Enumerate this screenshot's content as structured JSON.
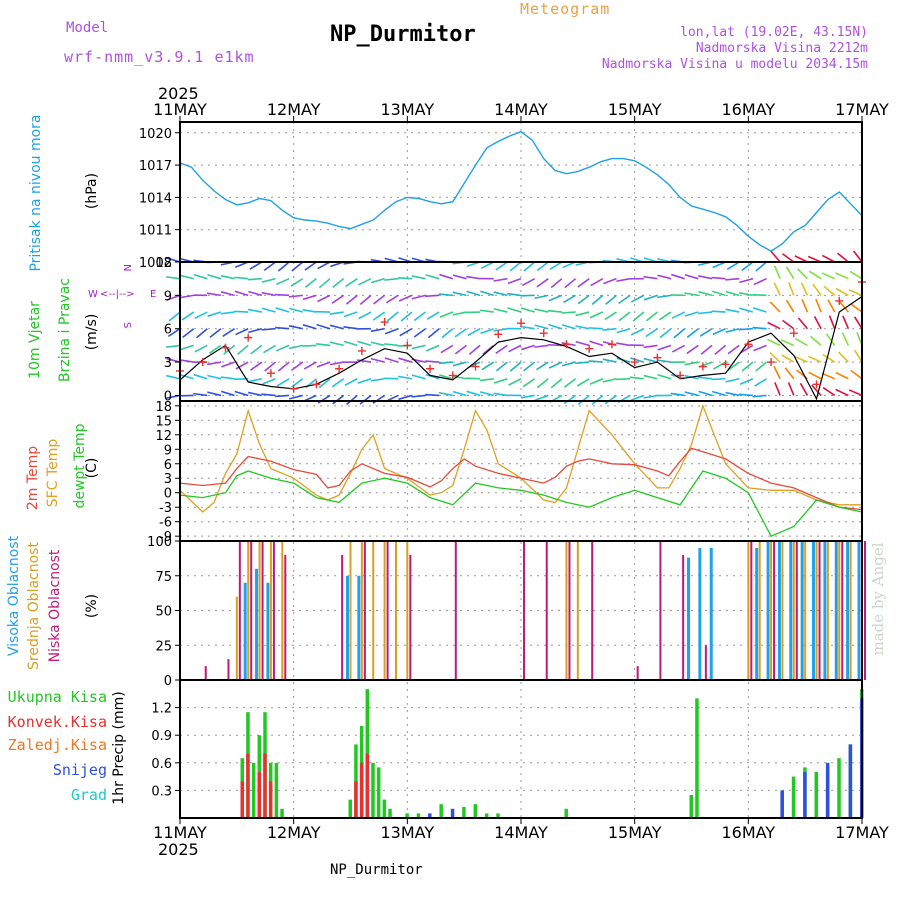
{
  "header": {
    "model_label": "Model",
    "model_name": "wrf-nmm_v3.9.1 e1km",
    "product": "Meteogram",
    "station": "NP_Durmitor",
    "lonlat": "lon,lat (19.02E, 43.15N)",
    "elevation": "Nadmorska Visina 2212m",
    "model_elevation": "Nadmorska Visina u modelu 2034.15m",
    "watermark": "made by Angel",
    "footer_station": "NP_Durmitor"
  },
  "colors": {
    "pressure": "#1ea0e6",
    "mslp_label": "#1ea0e6",
    "t2": "#e84a3c",
    "tsfc": "#e0a020",
    "td": "#22c822",
    "cloud_high": "#22a0e8",
    "cloud_mid": "#d8a020",
    "cloud_low": "#c01a78",
    "precip_total": "#22c822",
    "precip_conv": "#e83030",
    "precip_frz": "#f07820",
    "precip_snow": "#3050e0",
    "precip_graupel": "#20c8c8",
    "wind_speed": "#000000",
    "wind_gust": "#e83030",
    "compass": "#a020d0"
  },
  "time_axis": {
    "year": "2025",
    "labels": [
      "11MAY",
      "12MAY",
      "13MAY",
      "14MAY",
      "15MAY",
      "16MAY",
      "17MAY"
    ]
  },
  "panels": {
    "pressure": {
      "label1": "Pritisak na nivou mora",
      "unit": "(hPa)",
      "ticks": [
        "1008",
        "1011",
        "1014",
        "1017",
        "1020"
      ]
    },
    "wind": {
      "label1": "10m Vjetar",
      "label2": "Brzina i Pravac",
      "unit": "(m/s)",
      "ticks": [
        "0",
        "3",
        "6",
        "9",
        "12"
      ],
      "compass": {
        "n": "N",
        "s": "S",
        "w": "W",
        "e": "E",
        "arrows": "<--|-->"
      }
    },
    "temp": {
      "label1": "2m Temp",
      "label2": "SFC Temp",
      "label3": "dewpt Temp",
      "unit": "(C)",
      "ticks": [
        "-9",
        "-6",
        "-3",
        "0",
        "3",
        "6",
        "9",
        "12",
        "15",
        "18"
      ]
    },
    "cloud": {
      "label1": "Visoka Oblacnost",
      "label2": "Srednja Oblacnost",
      "label3": "Niska Oblacnost",
      "unit": "(%)",
      "ticks": [
        "0",
        "25",
        "50",
        "75",
        "100"
      ]
    },
    "precip": {
      "legend": [
        "Ukupna Kisa",
        "Konvek.Kisa",
        "Zaledj.Kisa",
        "Snijeg",
        "Grad"
      ],
      "unit": "1hr Precip (mm)",
      "ticks": [
        "0.3",
        "0.6",
        "0.9",
        "1.2"
      ]
    }
  },
  "chart_data": [
    {
      "type": "line",
      "title": "Pritisak na nivou mora",
      "ylabel": "(hPa)",
      "ylim": [
        1008,
        1021
      ],
      "x_unit": "days since 11MAY 00UTC",
      "xlim": [
        0,
        6
      ],
      "series": [
        {
          "name": "Pritisak na nivou mora",
          "x": [
            0,
            0.1,
            0.2,
            0.3,
            0.4,
            0.5,
            0.6,
            0.7,
            0.8,
            0.9,
            1.0,
            1.1,
            1.2,
            1.3,
            1.4,
            1.5,
            1.6,
            1.7,
            1.8,
            1.9,
            2.0,
            2.1,
            2.2,
            2.3,
            2.4,
            2.5,
            2.6,
            2.7,
            2.8,
            2.9,
            3.0,
            3.1,
            3.2,
            3.3,
            3.4,
            3.5,
            3.6,
            3.7,
            3.8,
            3.9,
            4.0,
            4.1,
            4.2,
            4.3,
            4.4,
            4.5,
            4.6,
            4.7,
            4.8,
            4.9,
            5.0,
            5.1,
            5.2,
            5.3,
            5.4,
            5.5,
            5.6,
            5.7,
            5.8,
            5.9,
            6.0
          ],
          "y": [
            1017.2,
            1016.8,
            1015.6,
            1014.6,
            1013.8,
            1013.3,
            1013.5,
            1013.9,
            1013.7,
            1012.8,
            1012.1,
            1011.9,
            1011.8,
            1011.6,
            1011.3,
            1011.1,
            1011.5,
            1011.9,
            1012.8,
            1013.6,
            1014.0,
            1013.9,
            1013.6,
            1013.4,
            1013.6,
            1015.3,
            1017.0,
            1018.6,
            1019.2,
            1019.7,
            1020.1,
            1019.3,
            1017.6,
            1016.5,
            1016.2,
            1016.4,
            1016.8,
            1017.3,
            1017.6,
            1017.6,
            1017.4,
            1016.8,
            1016.1,
            1015.2,
            1014.0,
            1013.2,
            1012.9,
            1012.6,
            1012.2,
            1011.4,
            1010.4,
            1009.6,
            1009.0,
            1009.7,
            1010.8,
            1011.4,
            1012.6,
            1013.8,
            1014.5,
            1013.4,
            1012.3
          ]
        }
      ]
    },
    {
      "type": "line",
      "title": "10m Vjetar Brzina i Pravac",
      "ylabel": "(m/s)",
      "ylim": [
        -0.5,
        12
      ],
      "xlim": [
        0,
        6
      ],
      "series": [
        {
          "name": "Brzina",
          "x": [
            0,
            0.2,
            0.4,
            0.6,
            0.8,
            1.0,
            1.2,
            1.4,
            1.6,
            1.8,
            2.0,
            2.2,
            2.4,
            2.6,
            2.8,
            3.0,
            3.2,
            3.4,
            3.6,
            3.8,
            4.0,
            4.2,
            4.4,
            4.6,
            4.8,
            5.0,
            5.2,
            5.4,
            5.6,
            5.8,
            6.0
          ],
          "y": [
            1.4,
            3.2,
            4.5,
            1.2,
            0.8,
            0.6,
            1.0,
            2.0,
            3.2,
            4.2,
            3.8,
            1.8,
            1.4,
            3.0,
            4.8,
            5.2,
            5.0,
            4.4,
            3.5,
            3.8,
            2.5,
            3.0,
            1.5,
            1.8,
            2.0,
            4.8,
            5.6,
            3.6,
            -0.3,
            7.5,
            8.9
          ]
        },
        {
          "name": "Udar",
          "x": [
            0,
            0.2,
            0.4,
            0.6,
            0.8,
            1.0,
            1.2,
            1.4,
            1.6,
            1.8,
            2.0,
            2.2,
            2.4,
            2.6,
            2.8,
            3.0,
            3.2,
            3.4,
            3.6,
            3.8,
            4.0,
            4.2,
            4.4,
            4.6,
            4.8,
            5.0,
            5.2,
            5.4,
            5.6,
            5.8,
            6.0
          ],
          "y": [
            2.2,
            3.0,
            4.3,
            5.2,
            2.0,
            0.6,
            1.0,
            2.4,
            4.0,
            6.6,
            4.5,
            2.4,
            1.8,
            2.6,
            5.5,
            6.5,
            5.6,
            4.6,
            4.2,
            4.6,
            3.0,
            3.4,
            1.8,
            2.6,
            2.8,
            4.6,
            3.0,
            5.6,
            1.0,
            8.5,
            10.2
          ]
        }
      ]
    },
    {
      "type": "line",
      "title": "Temperatura",
      "ylabel": "(C)",
      "ylim": [
        -10,
        19
      ],
      "xlim": [
        0,
        6
      ],
      "series": [
        {
          "name": "2m Temp",
          "x": [
            0,
            0.2,
            0.4,
            0.5,
            0.6,
            0.8,
            1.0,
            1.2,
            1.3,
            1.4,
            1.5,
            1.6,
            1.8,
            2.0,
            2.2,
            2.3,
            2.4,
            2.5,
            2.6,
            2.8,
            3.0,
            3.2,
            3.3,
            3.4,
            3.5,
            3.6,
            3.8,
            4.0,
            4.2,
            4.3,
            4.4,
            4.5,
            4.6,
            4.8,
            5.0,
            5.2,
            5.4,
            5.6,
            5.8,
            6.0
          ],
          "y": [
            2.0,
            1.5,
            2.0,
            5.0,
            7.5,
            6.5,
            4.8,
            3.8,
            1.0,
            1.5,
            4.5,
            6.0,
            4.0,
            3.2,
            1.2,
            2.5,
            5.0,
            7.0,
            5.5,
            4.0,
            3.0,
            2.0,
            3.2,
            5.5,
            6.5,
            7.0,
            6.0,
            5.8,
            4.5,
            3.5,
            6.5,
            9.2,
            8.5,
            7.0,
            4.0,
            2.0,
            1.0,
            -1.0,
            -3.0,
            -3.5
          ]
        },
        {
          "name": "SFC Temp",
          "x": [
            0,
            0.2,
            0.3,
            0.4,
            0.5,
            0.6,
            0.7,
            0.8,
            1.0,
            1.2,
            1.3,
            1.4,
            1.5,
            1.6,
            1.7,
            1.8,
            2.0,
            2.2,
            2.3,
            2.4,
            2.5,
            2.6,
            2.7,
            2.8,
            3.0,
            3.2,
            3.3,
            3.4,
            3.5,
            3.6,
            3.8,
            4.0,
            4.2,
            4.3,
            4.4,
            4.5,
            4.6,
            4.7,
            4.8,
            5.0,
            5.2,
            5.4,
            5.6,
            5.8,
            6.0
          ],
          "y": [
            0.5,
            -4.0,
            -2.0,
            4.0,
            8.0,
            17.0,
            10.0,
            5.0,
            3.0,
            -0.5,
            -1.5,
            -0.5,
            4.0,
            9.0,
            12.0,
            5.0,
            3.0,
            -0.5,
            0.0,
            1.5,
            9.0,
            17.0,
            13.0,
            6.0,
            3.0,
            -1.5,
            -2.0,
            1.0,
            9.0,
            17.0,
            12.0,
            6.0,
            1.0,
            1.0,
            5.0,
            10.0,
            18.0,
            12.0,
            6.0,
            1.0,
            0.5,
            0.5,
            -1.5,
            -2.5,
            -2.5
          ]
        },
        {
          "name": "dewpt Temp",
          "x": [
            0,
            0.2,
            0.4,
            0.5,
            0.6,
            0.8,
            1.0,
            1.2,
            1.4,
            1.6,
            1.8,
            2.0,
            2.2,
            2.4,
            2.6,
            2.8,
            3.0,
            3.2,
            3.4,
            3.6,
            3.8,
            4.0,
            4.2,
            4.4,
            4.6,
            4.8,
            5.0,
            5.2,
            5.4,
            5.6,
            5.8,
            6.0
          ],
          "y": [
            -0.5,
            -1.0,
            0.0,
            3.5,
            4.5,
            3.0,
            2.0,
            -1.0,
            -2.0,
            2.0,
            3.0,
            2.0,
            -1.0,
            -2.5,
            2.0,
            1.0,
            0.5,
            -0.5,
            -2.0,
            -3.0,
            -1.0,
            0.5,
            -1.0,
            -2.5,
            4.5,
            3.0,
            0.0,
            -9.0,
            -7.0,
            -1.5,
            -3.0,
            -4.0
          ]
        }
      ]
    },
    {
      "type": "bar",
      "title": "Oblacnost",
      "ylabel": "(%)",
      "ylim": [
        0,
        100
      ],
      "xlim": [
        0,
        6
      ],
      "series": [
        {
          "name": "Visoka Oblacnost",
          "x": [
            0.6,
            0.7,
            0.8,
            1.5,
            1.6,
            4.5,
            4.6,
            4.7,
            5.1,
            5.2,
            5.3,
            5.4,
            5.5,
            5.6,
            5.7,
            5.8,
            5.9,
            6.0
          ],
          "y": [
            70,
            80,
            70,
            75,
            75,
            88,
            95,
            95,
            95,
            100,
            100,
            100,
            100,
            100,
            100,
            100,
            100,
            100
          ]
        },
        {
          "name": "Srednja Oblacnost",
          "x": [
            0.5,
            0.6,
            0.7,
            0.8,
            0.9,
            1.5,
            1.6,
            1.7,
            1.8,
            1.9,
            2.0,
            3.4,
            3.5,
            5.0,
            5.1,
            5.2,
            5.3,
            5.4,
            5.5,
            5.6,
            5.7,
            5.8,
            5.9,
            6.0
          ],
          "y": [
            60,
            100,
            100,
            100,
            100,
            100,
            100,
            100,
            100,
            100,
            100,
            100,
            100,
            100,
            100,
            100,
            100,
            100,
            100,
            100,
            100,
            100,
            100,
            100
          ]
        },
        {
          "name": "Niska Oblacnost",
          "x": [
            0.2,
            0.4,
            0.5,
            0.6,
            0.7,
            0.8,
            0.9,
            1.4,
            1.6,
            1.8,
            2.0,
            2.4,
            3.0,
            3.2,
            3.4,
            3.6,
            4.0,
            4.2,
            4.4,
            4.6,
            5.0,
            5.2,
            5.4,
            5.6,
            5.8,
            6.0
          ],
          "y": [
            10,
            15,
            100,
            100,
            100,
            100,
            90,
            90,
            100,
            100,
            90,
            100,
            100,
            100,
            100,
            100,
            10,
            100,
            90,
            25,
            100,
            100,
            100,
            100,
            100,
            100
          ]
        }
      ]
    },
    {
      "type": "bar",
      "title": "1hr Precip",
      "ylabel": "1hr Precip (mm)",
      "ylim": [
        0,
        1.5
      ],
      "xlim": [
        0,
        6
      ],
      "series": [
        {
          "name": "Ukupna Kisa",
          "x": [
            0.55,
            0.6,
            0.65,
            0.7,
            0.75,
            0.8,
            0.85,
            0.9,
            0.95,
            1.5,
            1.55,
            1.6,
            1.65,
            1.7,
            1.75,
            1.8,
            1.85,
            2.0,
            2.1,
            2.3,
            2.5,
            2.6,
            2.7,
            2.8,
            3.4,
            4.5,
            4.55,
            5.3,
            5.4,
            5.5,
            5.6,
            5.7,
            5.8,
            5.9,
            6.0
          ],
          "y": [
            0.65,
            1.15,
            0.6,
            0.9,
            1.15,
            0.6,
            0.6,
            0.1,
            0.0,
            0.2,
            0.8,
            1.0,
            1.4,
            0.6,
            0.55,
            0.2,
            0.1,
            0.05,
            0.05,
            0.15,
            0.12,
            0.15,
            0.05,
            0.05,
            0.1,
            0.25,
            1.3,
            0.3,
            0.45,
            0.55,
            0.5,
            0.5,
            0.65,
            0.8,
            1.4
          ]
        },
        {
          "name": "Konvek.Kisa",
          "x": [
            0.55,
            0.6,
            0.7,
            0.75,
            0.8,
            1.55,
            1.6,
            1.65
          ],
          "y": [
            0.4,
            0.7,
            0.5,
            0.7,
            0.4,
            0.4,
            0.6,
            0.7
          ]
        },
        {
          "name": "Zaledj.Kisa",
          "x": [],
          "y": []
        },
        {
          "name": "Snijeg",
          "x": [
            2.2,
            2.4,
            5.3,
            5.5,
            5.7,
            5.9,
            6.0
          ],
          "y": [
            0.05,
            0.1,
            0.3,
            0.5,
            0.6,
            0.8,
            1.3
          ]
        },
        {
          "name": "Grad",
          "x": [],
          "y": []
        }
      ]
    }
  ]
}
